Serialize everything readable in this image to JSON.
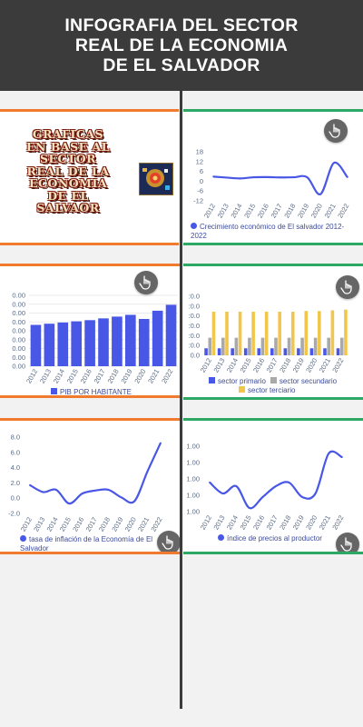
{
  "header": {
    "title": "INFOGRAFIA DEL SECTOR\nREAL DE LA ECONOMIA\nDE EL SALVADOR"
  },
  "title_card": {
    "text": "GRAFICAS\nEN BASE AL\nSECTOR\nREAL DE LA\nECONOMIA\nDE EL\nSALVAOR"
  },
  "colors": {
    "orange": "#f07b2e",
    "green": "#2fa765",
    "blue": "#4957e6",
    "gray": "#a9a9a9",
    "yellow": "#f2c64a",
    "header": "#3b3b3b"
  },
  "icons": {
    "tap": "hand-pointer-icon"
  },
  "chart_data": [
    {
      "id": "growth",
      "type": "line",
      "x": [
        "2012",
        "2013",
        "2014",
        "2015",
        "2016",
        "2017",
        "2018",
        "2019",
        "2020",
        "2021",
        "2022"
      ],
      "series": [
        {
          "name": "Crecimiento económico de El salvador 2012-2022",
          "values": [
            2.8,
            2.2,
            1.7,
            2.4,
            2.5,
            2.3,
            2.4,
            2.4,
            -7.9,
            11.2,
            2.6
          ]
        }
      ],
      "ylim": [
        -12,
        18
      ],
      "yticks": [
        "18",
        "12",
        "6",
        "0",
        "-6",
        "-12"
      ],
      "legend": "bottom",
      "grid": false
    },
    {
      "id": "pib",
      "type": "bar",
      "categories": [
        "2012",
        "2013",
        "2014",
        "2015",
        "2016",
        "2017",
        "2018",
        "2019",
        "2020",
        "2021",
        "2022"
      ],
      "series": [
        {
          "name": "PIB POR HABITANTE",
          "values": [
            3.5,
            3.6,
            3.7,
            3.8,
            3.9,
            4.05,
            4.2,
            4.35,
            4.0,
            4.7,
            5.2
          ]
        }
      ],
      "ylim": [
        0,
        6
      ],
      "yticks": [
        "0.00",
        "0.00",
        "0.00",
        "0.00",
        "0.00",
        "0.00",
        "0.00",
        "0.00",
        "0.00"
      ],
      "legend": "bottom",
      "grid": true
    },
    {
      "id": "sectors",
      "type": "bar",
      "categories": [
        "2012",
        "2013",
        "2014",
        "2015",
        "2016",
        "2017",
        "2018",
        "2019",
        "2020",
        "2021",
        "2022"
      ],
      "series": [
        {
          "name": "sector primario",
          "values": [
            10,
            10,
            10,
            10,
            10,
            10,
            10,
            10,
            10,
            10,
            10
          ]
        },
        {
          "name": "sector secundario",
          "values": [
            25,
            25,
            25,
            25,
            25,
            25,
            25,
            25,
            25,
            25,
            25
          ]
        },
        {
          "name": "sector terciario",
          "values": [
            62,
            62,
            62,
            62,
            62,
            62,
            62,
            63,
            63,
            64,
            65
          ]
        }
      ],
      "ylim": [
        0,
        84
      ],
      "yticks": [
        ":0.0",
        ":0.0",
        ":0.0",
        ":0.0",
        ":0.0",
        ":0.0",
        "0.0"
      ],
      "legend": "bottom",
      "grid": false
    },
    {
      "id": "inflation",
      "type": "line",
      "x": [
        "2012",
        "2013",
        "2014",
        "2015",
        "2016",
        "2017",
        "2018",
        "2019",
        "2020",
        "2021",
        "2022"
      ],
      "series": [
        {
          "name": "tasa de inflación de la Economía de El Salvador",
          "values": [
            1.7,
            0.8,
            1.1,
            -0.7,
            0.6,
            1.0,
            1.1,
            0.1,
            -0.4,
            3.5,
            7.2
          ]
        }
      ],
      "ylim": [
        -2,
        8
      ],
      "yticks": [
        "8.0",
        "6.0",
        "4.0",
        "2.0",
        "0.0",
        "-2.0"
      ],
      "legend": "bottom",
      "grid": false
    },
    {
      "id": "ipp",
      "type": "line",
      "x": [
        "2012",
        "2013",
        "2014",
        "2015",
        "2016",
        "2017",
        "2018",
        "2019",
        "2020",
        "2021",
        "2022"
      ],
      "series": [
        {
          "name": "índice de precios al productor",
          "values": [
            1.2,
            0.9,
            1.1,
            0.5,
            0.8,
            1.1,
            1.2,
            0.8,
            0.9,
            2.0,
            1.9
          ]
        }
      ],
      "ylim": [
        0.4,
        2.2
      ],
      "yticks": [
        "1.00",
        "1.00",
        "1.00",
        "1.00",
        "1.00"
      ],
      "legend": "bottom",
      "grid": false
    }
  ]
}
